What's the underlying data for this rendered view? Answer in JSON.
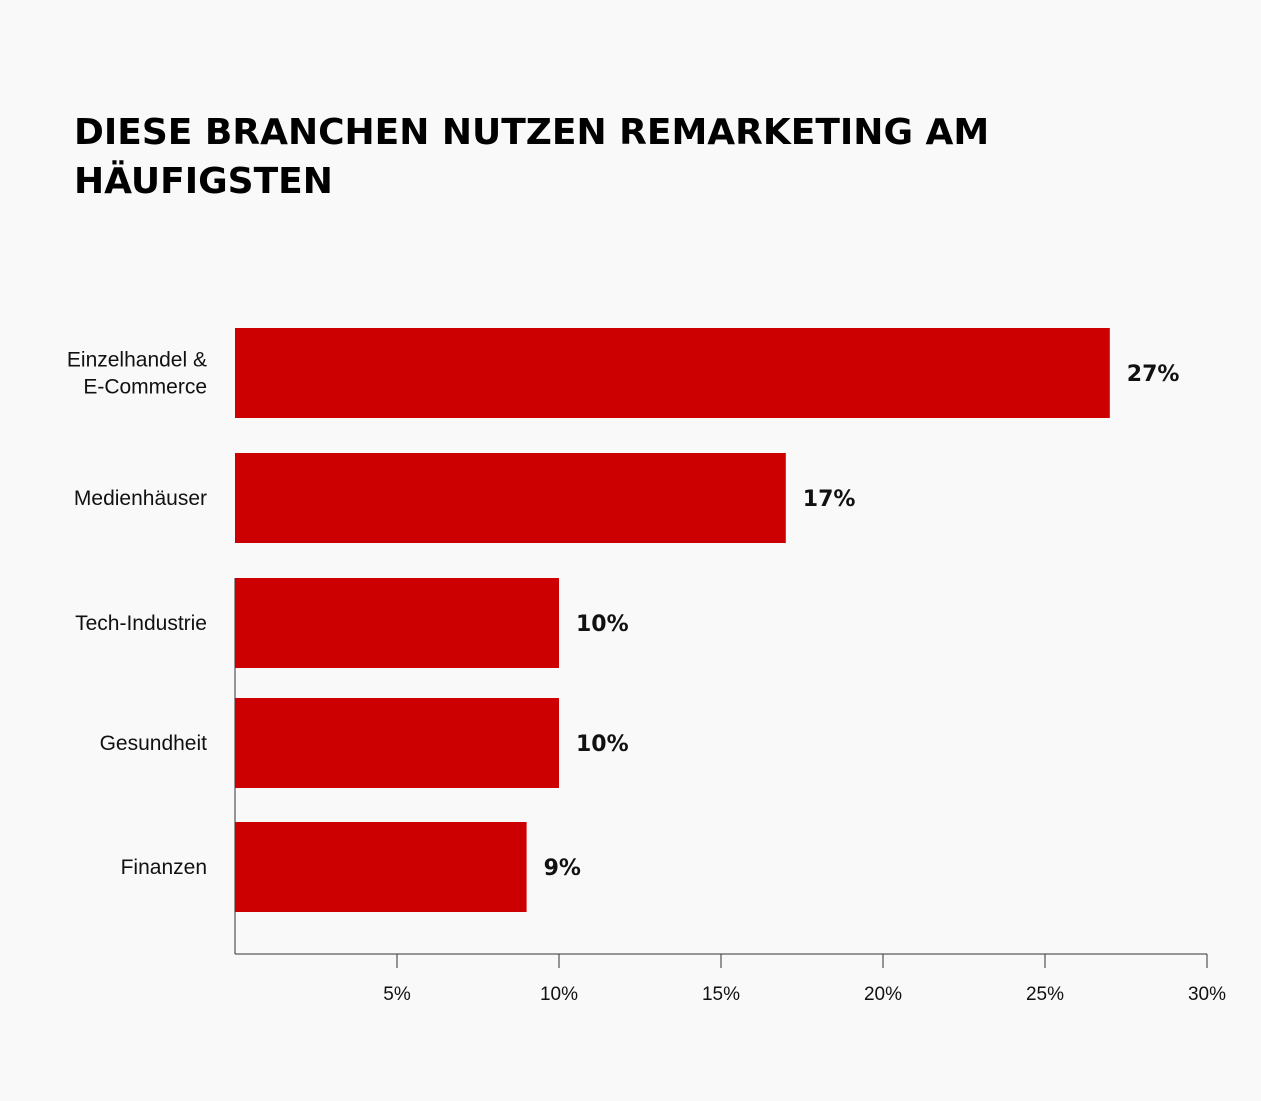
{
  "chart_data": {
    "type": "bar",
    "orientation": "horizontal",
    "title_lines": [
      "DIESE BRANCHEN NUTZEN REMARKETING AM",
      "HÄUFIGSTEN"
    ],
    "categories": [
      [
        "Einzelhandel &",
        "E-Commerce"
      ],
      [
        "Medienhäuser"
      ],
      [
        "Tech-Industrie"
      ],
      [
        "Gesundheit"
      ],
      [
        "Finanzen"
      ]
    ],
    "values": [
      27,
      17,
      10,
      10,
      9
    ],
    "value_labels": [
      "27%",
      "17%",
      "10%",
      "10%",
      "9%"
    ],
    "xlim": [
      0,
      30
    ],
    "xticks": [
      5,
      10,
      15,
      20,
      25,
      30
    ],
    "xtick_labels": [
      "5%",
      "10%",
      "15%",
      "20%",
      "25%",
      "30%"
    ],
    "xlabel": "",
    "ylabel": "",
    "grid": false,
    "legend": "none",
    "bar_color": "#cc0000"
  }
}
